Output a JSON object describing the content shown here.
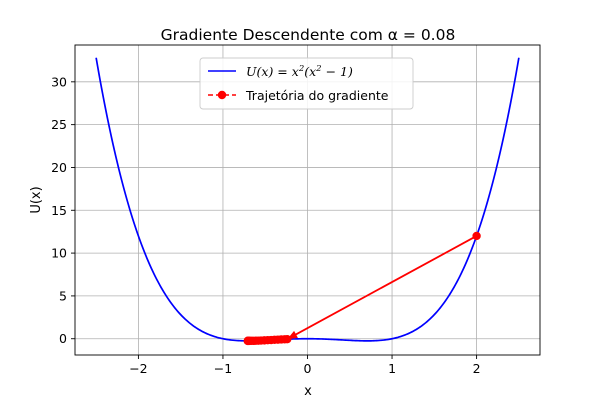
{
  "chart_data": {
    "type": "line",
    "title": "Gradiente Descendente com α = 0.08",
    "xlabel": "x",
    "ylabel": "U(x)",
    "xlim": [
      -2.75,
      2.75
    ],
    "ylim": [
      -1.9,
      34.3
    ],
    "xticks": [
      -2,
      -1,
      0,
      1,
      2
    ],
    "yticks": [
      0,
      5,
      10,
      15,
      20,
      25,
      30
    ],
    "grid": true,
    "legend_position": "top-center",
    "series": [
      {
        "name": "U(x) = x²(x² − 1)",
        "legend_parts": [
          "U(x) = x",
          "2",
          "(x",
          "2",
          " − 1)"
        ],
        "color": "#0000ff",
        "function": "x^2*(x^2-1)",
        "x_range": [
          -2.5,
          2.5
        ]
      },
      {
        "name": "Trajetória do gradiente",
        "color": "#ff0000",
        "style": "dashed-with-markers",
        "x": [
          2.0,
          -0.24,
          -0.27,
          -0.31,
          -0.35,
          -0.39,
          -0.43,
          -0.47,
          -0.51,
          -0.55,
          -0.58,
          -0.61,
          -0.64,
          -0.66,
          -0.68,
          -0.69,
          -0.7,
          -0.705,
          -0.707
        ],
        "y": [
          12.0,
          -0.054,
          -0.068,
          -0.087,
          -0.107,
          -0.129,
          -0.151,
          -0.172,
          -0.192,
          -0.211,
          -0.225,
          -0.233,
          -0.242,
          -0.246,
          -0.249,
          -0.25,
          -0.25,
          -0.25,
          -0.25
        ]
      }
    ]
  }
}
